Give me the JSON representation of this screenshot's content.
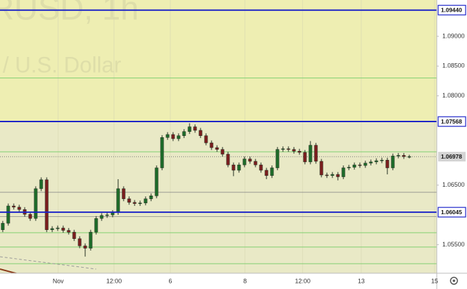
{
  "chart_data": {
    "type": "candlestick",
    "watermark_title": "RUSD, 1h",
    "watermark_subtitle": "/ U.S. Dollar",
    "up_color": "#1f6b2a",
    "down_color": "#7a1f1f",
    "background_colors": [
      "#eeeeb2",
      "#e9e9c6"
    ],
    "x": [
      0.5,
      1.5,
      2.5,
      3.5,
      4.5,
      5.5,
      6.5,
      7.5,
      8.5,
      9.5,
      10.5,
      11.5,
      12.5,
      13.5,
      14.5,
      15.5,
      16.5,
      17.5,
      18.5,
      19.5,
      20.5,
      21.5,
      22.5,
      23.5,
      24.5,
      25.5,
      26.5,
      27.5,
      28.5,
      29.5,
      30.5,
      31.5,
      32.5,
      33.5,
      34.5,
      35.5,
      36.5,
      37.5,
      38.5,
      39.5,
      40.5,
      41.5,
      42.5,
      43.5,
      44.5,
      45.5,
      46.5,
      47.5,
      48.5,
      49.5,
      50.5,
      51.5,
      52.5,
      53.5,
      54.5,
      55.5,
      56.5,
      57.5,
      58.5,
      59.5,
      60.5,
      61.5,
      62.5,
      63.5,
      64.5,
      65.5,
      66.5,
      67.5,
      68.5,
      69.5,
      70.5,
      71.5,
      72.5,
      73.5,
      74.5
    ],
    "open": [
      1.0575,
      1.0586,
      1.0615,
      1.0613,
      1.0609,
      1.0601,
      1.0594,
      1.0644,
      1.0659,
      1.0575,
      1.0577,
      1.0578,
      1.0574,
      1.0571,
      1.056,
      1.0548,
      1.0544,
      1.0571,
      1.0594,
      1.0599,
      1.06,
      1.0604,
      1.0644,
      1.0627,
      1.0621,
      1.0619,
      1.062,
      1.0627,
      1.0632,
      1.0679,
      1.073,
      1.0735,
      1.0728,
      1.0733,
      1.074,
      1.0748,
      1.0742,
      1.0733,
      1.0721,
      1.0713,
      1.071,
      1.0702,
      1.0684,
      1.0675,
      1.0684,
      1.0694,
      1.069,
      1.0684,
      1.0675,
      1.0666,
      1.0679,
      1.071,
      1.0711,
      1.071,
      1.0707,
      1.0705,
      1.0689,
      1.0717,
      1.069,
      1.0667,
      1.0666,
      1.0668,
      1.0664,
      1.0679,
      1.068,
      1.0684,
      1.0683,
      1.0687,
      1.0689,
      1.0691,
      1.0692,
      1.0679,
      1.0699,
      1.07,
      1.0698
    ],
    "high": [
      1.059,
      1.0619,
      1.0619,
      1.0617,
      1.0613,
      1.0605,
      1.0648,
      1.0663,
      1.0663,
      1.0581,
      1.0582,
      1.0582,
      1.0578,
      1.0575,
      1.0564,
      1.0552,
      1.0575,
      1.0598,
      1.0603,
      1.0604,
      1.0608,
      1.066,
      1.0648,
      1.0631,
      1.0625,
      1.0624,
      1.0631,
      1.0636,
      1.0683,
      1.0734,
      1.0739,
      1.0739,
      1.0737,
      1.0744,
      1.0754,
      1.0752,
      1.0746,
      1.0737,
      1.0725,
      1.0717,
      1.0714,
      1.0706,
      1.0688,
      1.0688,
      1.0698,
      1.0698,
      1.0694,
      1.0688,
      1.0679,
      1.0683,
      1.0714,
      1.0715,
      1.0715,
      1.0714,
      1.0711,
      1.0709,
      1.0724,
      1.0721,
      1.0694,
      1.0671,
      1.0672,
      1.0672,
      1.0683,
      1.0684,
      1.0688,
      1.0688,
      1.0691,
      1.0693,
      1.0695,
      1.0696,
      1.0696,
      1.0703,
      1.0704,
      1.0704,
      1.0701
    ],
    "low": [
      1.0571,
      1.0582,
      1.0609,
      1.0605,
      1.0597,
      1.059,
      1.059,
      1.064,
      1.0571,
      1.0571,
      1.0573,
      1.057,
      1.0567,
      1.0556,
      1.0544,
      1.053,
      1.054,
      1.0567,
      1.059,
      1.0595,
      1.0596,
      1.06,
      1.0623,
      1.0617,
      1.0615,
      1.0615,
      1.0616,
      1.0623,
      1.0628,
      1.0675,
      1.0726,
      1.0724,
      1.0724,
      1.0729,
      1.0736,
      1.0738,
      1.0729,
      1.0717,
      1.0709,
      1.0706,
      1.0698,
      1.068,
      1.0665,
      1.0671,
      1.068,
      1.0686,
      1.068,
      1.0671,
      1.066,
      1.0662,
      1.0675,
      1.0706,
      1.0706,
      1.0703,
      1.0701,
      1.0685,
      1.0685,
      1.0686,
      1.0663,
      1.0662,
      1.0662,
      1.0658,
      1.066,
      1.0675,
      1.0676,
      1.0679,
      1.0679,
      1.0683,
      1.0685,
      1.0687,
      1.0668,
      1.0675,
      1.0695,
      1.0694,
      1.0695
    ],
    "close": [
      1.0586,
      1.0615,
      1.0613,
      1.0609,
      1.0601,
      1.0594,
      1.0644,
      1.0659,
      1.0575,
      1.0577,
      1.0578,
      1.0574,
      1.0571,
      1.056,
      1.0548,
      1.0544,
      1.0571,
      1.0594,
      1.0599,
      1.06,
      1.0604,
      1.0644,
      1.0627,
      1.0621,
      1.0619,
      1.062,
      1.0627,
      1.0632,
      1.0679,
      1.073,
      1.0735,
      1.0728,
      1.0733,
      1.074,
      1.0748,
      1.0742,
      1.0733,
      1.0721,
      1.0713,
      1.071,
      1.0702,
      1.0684,
      1.0675,
      1.0684,
      1.0694,
      1.069,
      1.0684,
      1.0675,
      1.0666,
      1.0679,
      1.071,
      1.0711,
      1.071,
      1.0707,
      1.0705,
      1.0689,
      1.0717,
      1.069,
      1.0667,
      1.0666,
      1.0668,
      1.0664,
      1.0679,
      1.068,
      1.0684,
      1.0683,
      1.0687,
      1.0689,
      1.0691,
      1.0692,
      1.0679,
      1.0699,
      1.07,
      1.0698,
      1.0698
    ],
    "xlim": [
      0,
      79.5
    ],
    "xticks": [
      {
        "value": 10.6,
        "label": "Nov"
      },
      {
        "value": 20.75,
        "label": "12:00"
      },
      {
        "value": 31,
        "label": "6"
      },
      {
        "value": 44.6,
        "label": "8"
      },
      {
        "value": 55.1,
        "label": "12:00"
      },
      {
        "value": 65.75,
        "label": "13"
      },
      {
        "value": 79.1,
        "label": "15"
      }
    ],
    "ylim": [
      1.0502,
      1.0961
    ],
    "yticks": [
      {
        "value": 1.055,
        "label": "1.05500"
      },
      {
        "value": 1.065,
        "label": "1.06500"
      },
      {
        "value": 1.08,
        "label": "1.08000"
      },
      {
        "value": 1.085,
        "label": "1.08500"
      },
      {
        "value": 1.09,
        "label": "1.09000"
      }
    ],
    "levels": [
      {
        "value": 1.0944,
        "label": "1.09440",
        "color": "#1a22c8"
      },
      {
        "value": 1.07568,
        "label": "1.07568",
        "color": "#1a22c8"
      },
      {
        "value": 1.06045,
        "label": "1.06045",
        "color": "#1a22c8"
      }
    ],
    "green_lines": [
      1.083,
      1.0706,
      1.057,
      1.0546,
      1.0518
    ],
    "green_color": "#7fcf6f",
    "grey_lines": [
      1.0638,
      1.0597
    ],
    "grey_color": "#8a8a8a",
    "current_price": {
      "value": 1.06978,
      "label": "1.06978"
    }
  }
}
